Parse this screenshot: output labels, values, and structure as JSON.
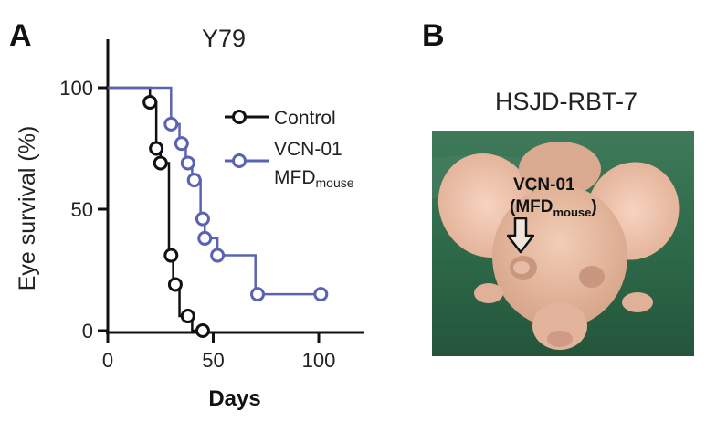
{
  "panel_a": {
    "letter": "A"
  },
  "panel_b": {
    "letter": "B",
    "title": "HSJD-RBT-7",
    "annotation_line1": "VCN-01",
    "annotation_line2_main": "(MFD",
    "annotation_line2_sub": "mouse",
    "annotation_line2_end": ")",
    "arrow_icon": "down-arrow-icon"
  },
  "chart_data": {
    "type": "line",
    "step": true,
    "title": "Y79",
    "xlabel": "Days",
    "ylabel": "Eye survival (%)",
    "xlim": [
      0,
      120
    ],
    "ylim": [
      0,
      100
    ],
    "xticks": [
      "0",
      "50",
      "100"
    ],
    "yticks": [
      "0",
      "50",
      "100"
    ],
    "grid": false,
    "legend_position": "right",
    "series": [
      {
        "name": "Control",
        "color": "#111111",
        "steps": [
          [
            0,
            100
          ],
          [
            20,
            100
          ],
          [
            20,
            94
          ],
          [
            23,
            94
          ],
          [
            23,
            75
          ],
          [
            25,
            75
          ],
          [
            25,
            69
          ],
          [
            29,
            69
          ],
          [
            29,
            31
          ],
          [
            31,
            31
          ],
          [
            31,
            19
          ],
          [
            34,
            19
          ],
          [
            34,
            6
          ],
          [
            40,
            6
          ],
          [
            40,
            0
          ],
          [
            45,
            0
          ]
        ],
        "markers": [
          [
            20,
            94
          ],
          [
            23,
            75
          ],
          [
            25,
            69
          ],
          [
            30,
            31
          ],
          [
            32,
            19
          ],
          [
            38,
            6
          ],
          [
            45,
            0
          ]
        ]
      },
      {
        "name_main": "VCN-01",
        "name_line2_main": "MFD",
        "name_line2_sub": "mouse",
        "color": "#5a63b3",
        "steps": [
          [
            0,
            100
          ],
          [
            30,
            100
          ],
          [
            30,
            85
          ],
          [
            34,
            85
          ],
          [
            34,
            77
          ],
          [
            37,
            77
          ],
          [
            37,
            69
          ],
          [
            40,
            69
          ],
          [
            40,
            62
          ],
          [
            44,
            62
          ],
          [
            44,
            46
          ],
          [
            46,
            46
          ],
          [
            46,
            38
          ],
          [
            52,
            38
          ],
          [
            52,
            31
          ],
          [
            70,
            31
          ],
          [
            70,
            15
          ],
          [
            101,
            15
          ]
        ],
        "markers": [
          [
            30,
            85
          ],
          [
            35,
            77
          ],
          [
            38,
            69
          ],
          [
            41,
            62
          ],
          [
            45,
            46
          ],
          [
            46,
            38
          ],
          [
            52,
            31
          ],
          [
            71,
            15
          ],
          [
            101,
            15
          ]
        ]
      }
    ]
  }
}
